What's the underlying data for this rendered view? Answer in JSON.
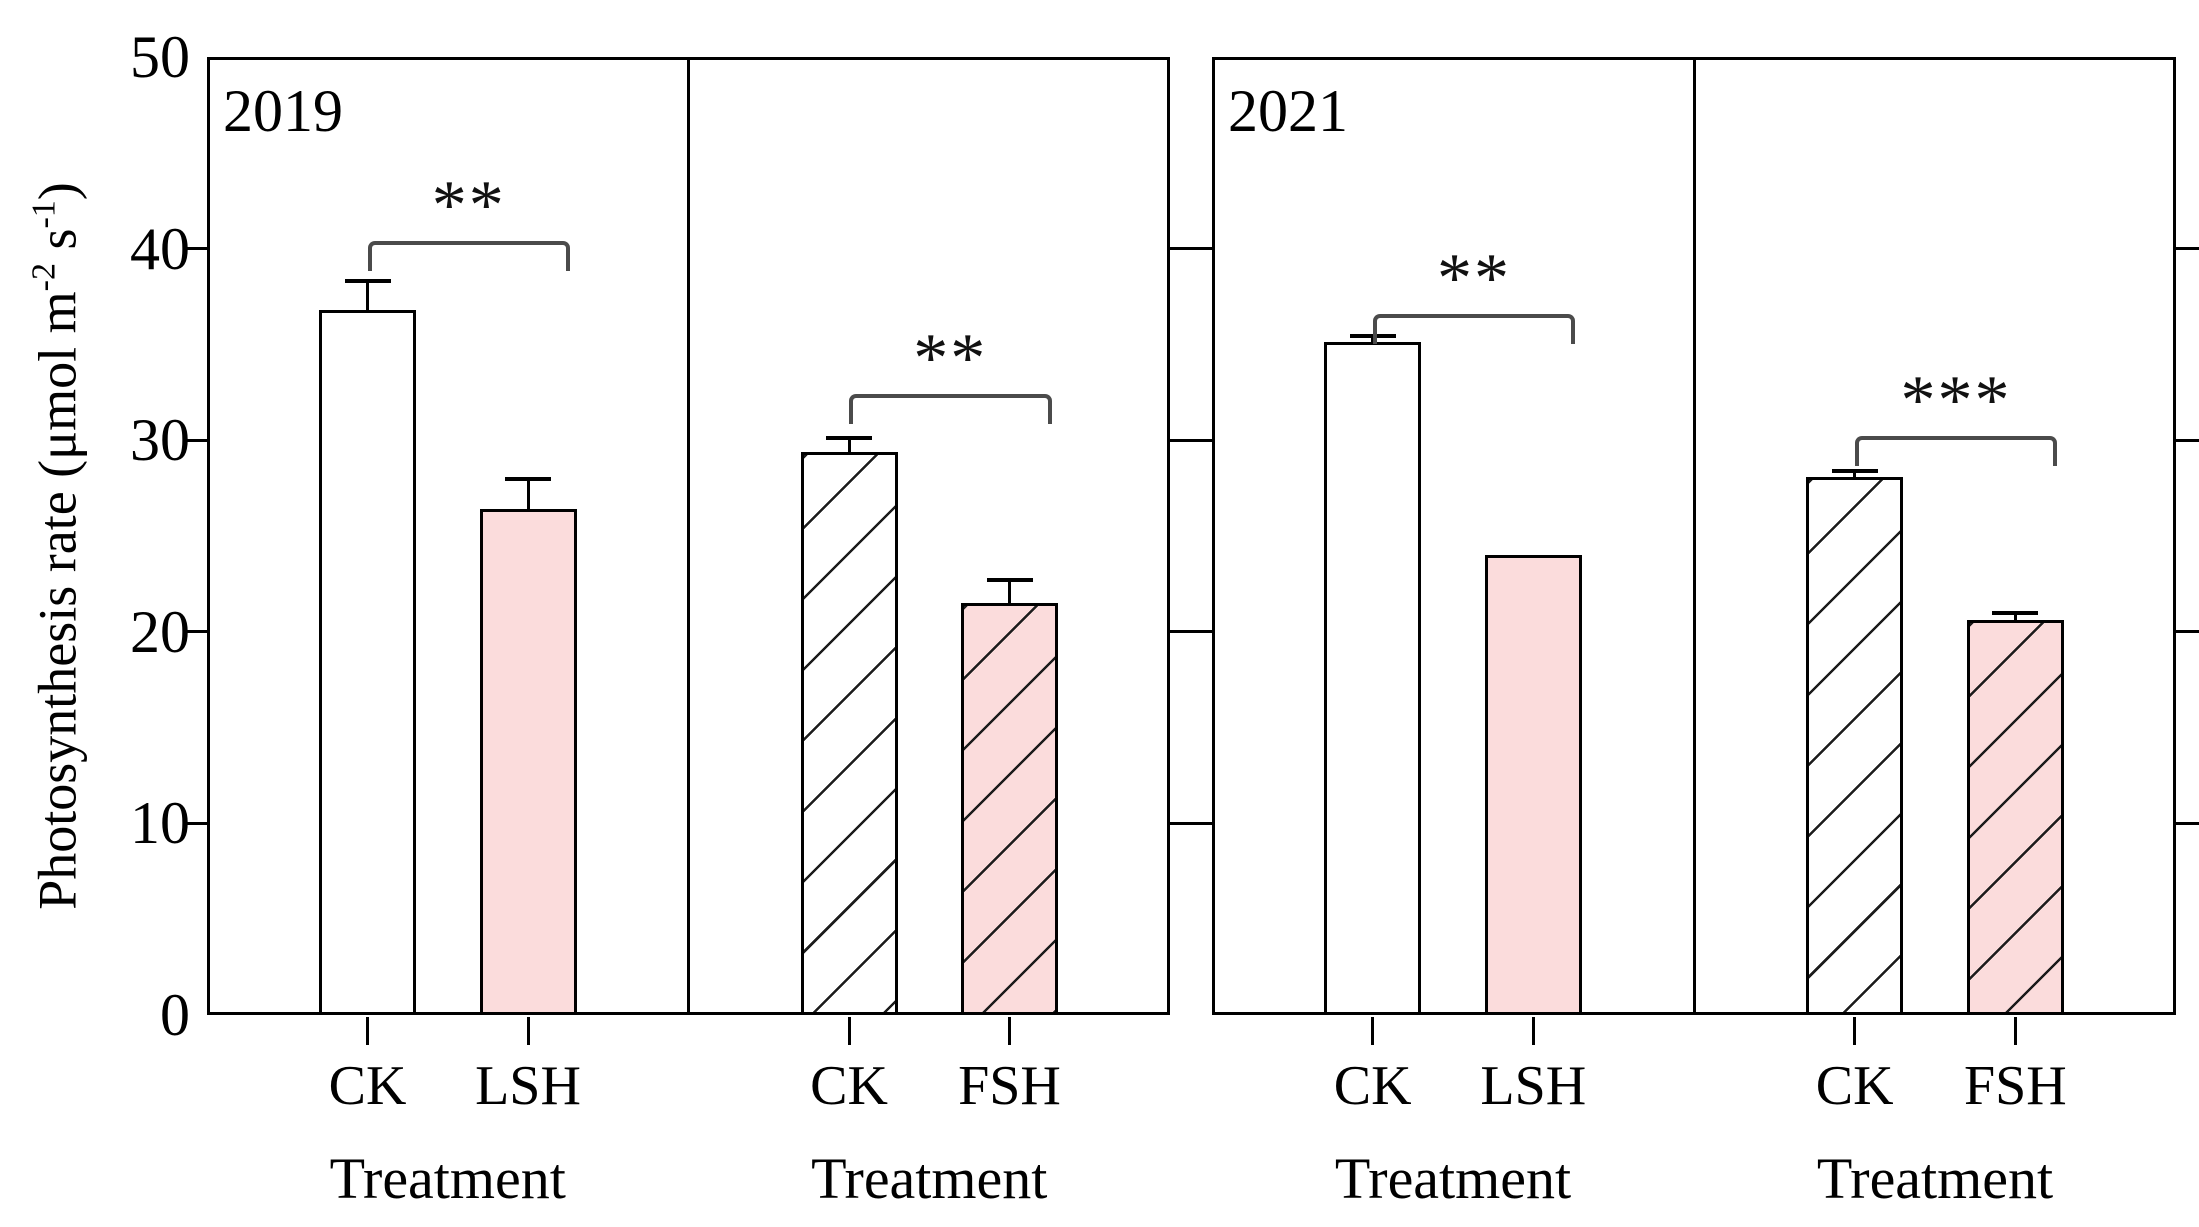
{
  "ylabel_parts": {
    "prefix": "Photosynthesis rate (μmol m",
    "sup1": "-2",
    "mid": " s",
    "sup2": "-1",
    "suffix": ")"
  },
  "chart_data": {
    "type": "bar",
    "title": "",
    "ylabel": "Photosynthesis rate (μmol m⁻² s⁻¹)",
    "xlabel": "Treatment",
    "ylim": [
      0,
      50
    ],
    "yticks": [
      0,
      10,
      20,
      30,
      40,
      50
    ],
    "grid": false,
    "legend": "none",
    "colors": {
      "bar_white": "#ffffff",
      "bar_pink": "#fbdcdc",
      "axis": "#000000",
      "bracket": "#4b4b4b"
    },
    "groups": [
      {
        "year": "2019",
        "panels": [
          {
            "xlabel": "Treatment",
            "hatched": false,
            "significance": "**",
            "sig_y": 40.4,
            "bars": [
              {
                "label": "CK",
                "value": 36.8,
                "error": 1.5,
                "fill": "#ffffff"
              },
              {
                "label": "LSH",
                "value": 26.4,
                "error": 1.6,
                "fill": "#fbdcdc"
              }
            ]
          },
          {
            "xlabel": "Treatment",
            "hatched": true,
            "significance": "**",
            "sig_y": 32.4,
            "bars": [
              {
                "label": "CK",
                "value": 29.4,
                "error": 0.7,
                "fill": "#ffffff"
              },
              {
                "label": "FSH",
                "value": 21.5,
                "error": 1.2,
                "fill": "#fbdcdc"
              }
            ]
          }
        ]
      },
      {
        "year": "2021",
        "panels": [
          {
            "xlabel": "Treatment",
            "hatched": false,
            "significance": "**",
            "sig_y": 36.6,
            "bars": [
              {
                "label": "CK",
                "value": 35.1,
                "error": 0.35,
                "fill": "#ffffff"
              },
              {
                "label": "LSH",
                "value": 24.0,
                "error": 0,
                "fill": "#fbdcdc"
              }
            ]
          },
          {
            "xlabel": "Treatment",
            "hatched": true,
            "significance": "***",
            "sig_y": 30.2,
            "bars": [
              {
                "label": "CK",
                "value": 28.1,
                "error": 0.3,
                "fill": "#ffffff"
              },
              {
                "label": "FSH",
                "value": 20.6,
                "error": 0.4,
                "fill": "#fbdcdc"
              }
            ]
          }
        ]
      }
    ]
  }
}
